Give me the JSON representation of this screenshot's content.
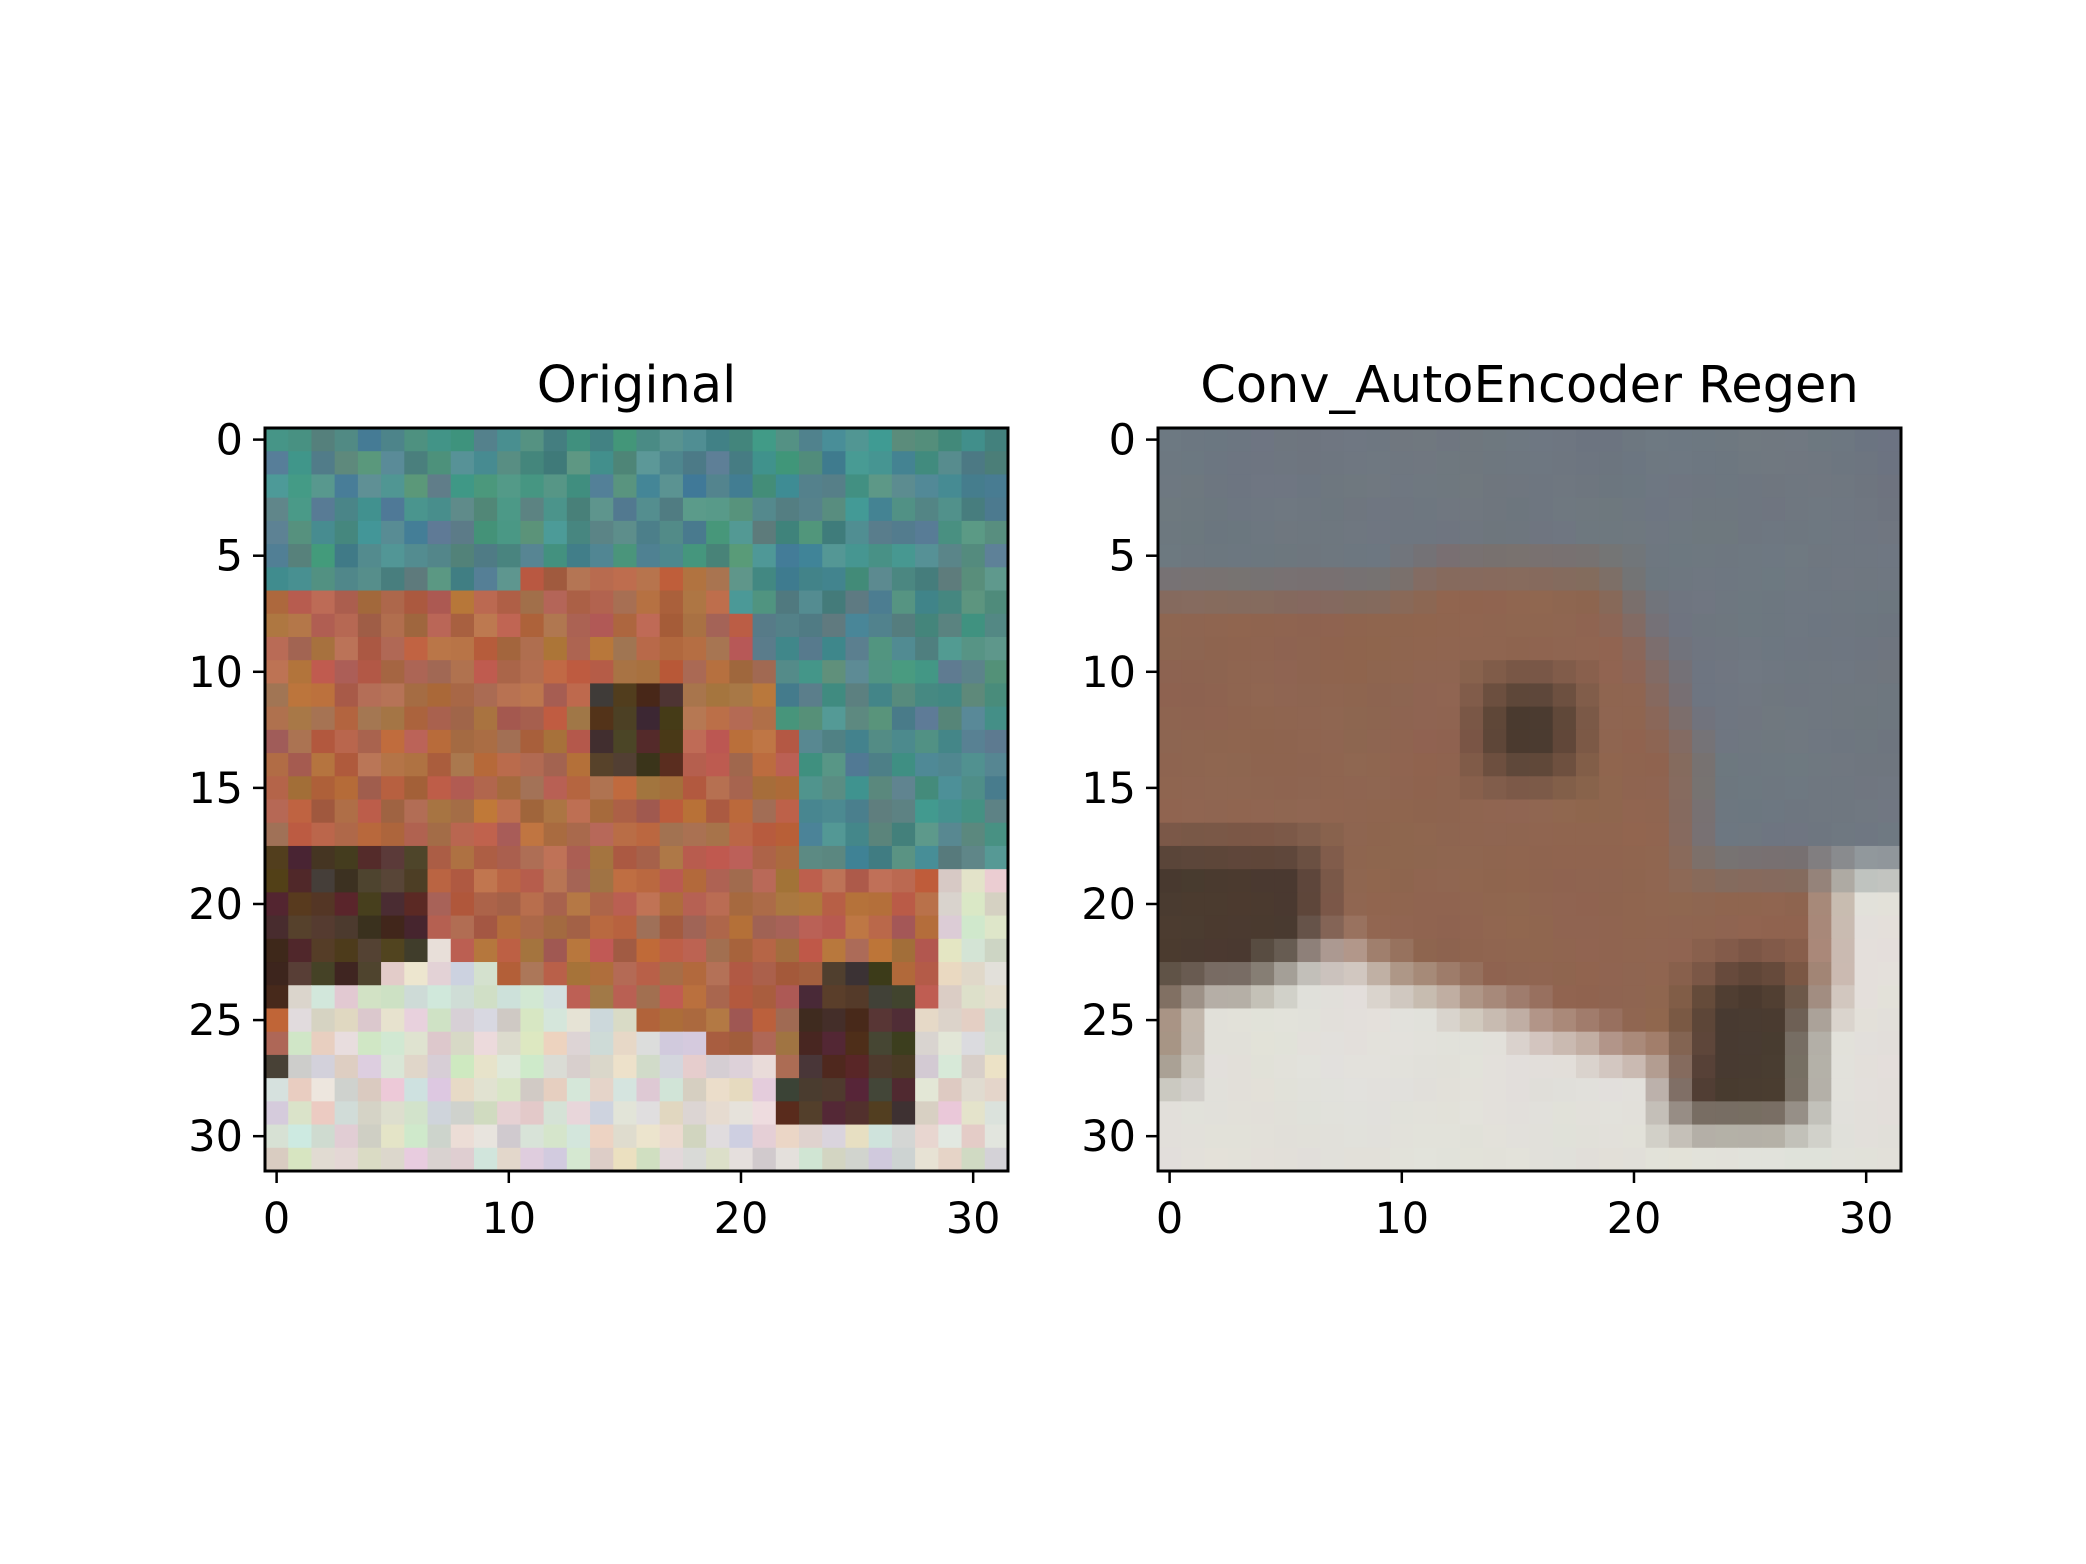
{
  "figure": {
    "background_color": "#ffffff"
  },
  "chart_data": [
    {
      "type": "heatmap",
      "title": "Original",
      "xlabel": "",
      "ylabel": "",
      "xlim": [
        -0.5,
        31.5
      ],
      "ylim": [
        31.5,
        -0.5
      ],
      "xticks": [
        0,
        10,
        20,
        30
      ],
      "yticks": [
        0,
        5,
        10,
        15,
        20,
        25,
        30
      ],
      "grid": false,
      "legend": "none",
      "image_description_colors": {
        "sky": "#4f8a88",
        "horse_body": "#b06848",
        "horse_dark": "#4a3528",
        "ground": "#ddd9d0"
      }
    },
    {
      "type": "heatmap",
      "title": "Conv_AutoEncoder Regen",
      "xlabel": "",
      "ylabel": "",
      "xlim": [
        -0.5,
        31.5
      ],
      "ylim": [
        31.5,
        -0.5
      ],
      "xticks": [
        0,
        10,
        20,
        30
      ],
      "yticks": [
        0,
        5,
        10,
        15,
        20,
        25,
        30
      ],
      "grid": false,
      "legend": "none",
      "image_description_colors": {
        "sky": "#6e7780",
        "horse_body": "#8f6550",
        "horse_dark": "#4a3a30",
        "ground": "#e2e0da"
      }
    }
  ]
}
